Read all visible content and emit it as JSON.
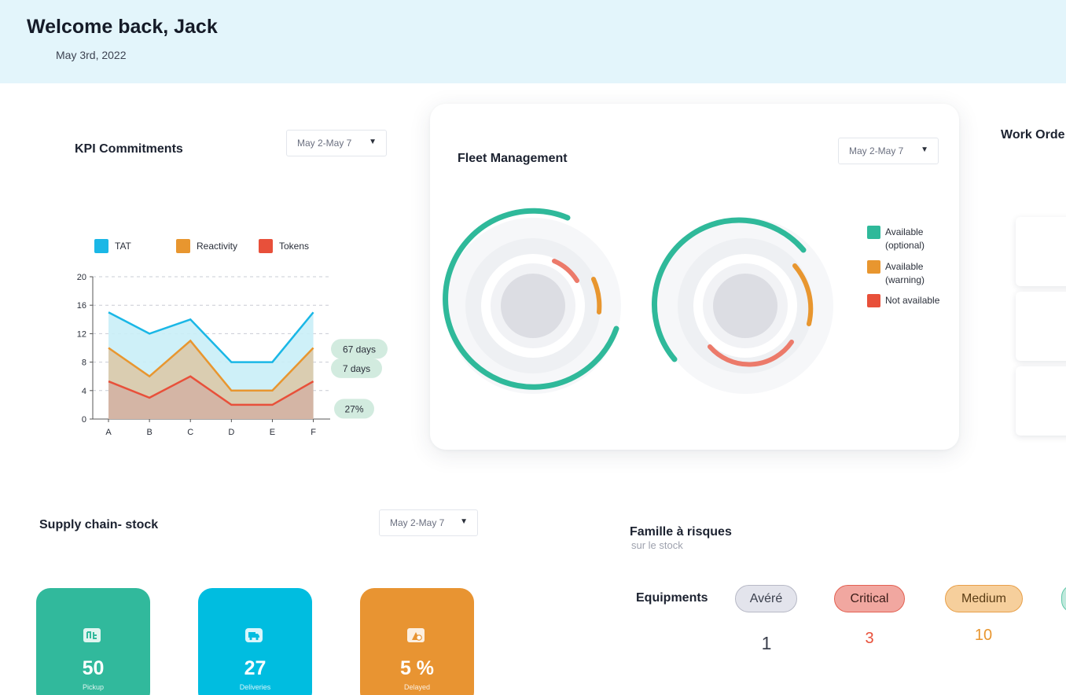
{
  "header": {
    "welcome": "Welcome back, Jack",
    "date": "May 3rd, 2022"
  },
  "kpi": {
    "title": "KPI Commitments",
    "range": "May 2-May 7",
    "legend": [
      {
        "label": "TAT",
        "color": "#1ab7e6"
      },
      {
        "label": "Reactivity",
        "color": "#e8962f"
      },
      {
        "label": "Tokens",
        "color": "#e8503a"
      }
    ],
    "badges": [
      "67 days",
      "7 days",
      "27%"
    ]
  },
  "chart_data": {
    "type": "area",
    "categories": [
      "A",
      "B",
      "C",
      "D",
      "E",
      "F"
    ],
    "series": [
      {
        "name": "TAT",
        "values": [
          15,
          12,
          14,
          8,
          8,
          15
        ]
      },
      {
        "name": "Reactivity",
        "values": [
          10,
          6,
          11,
          4,
          4,
          10
        ]
      },
      {
        "name": "Tokens",
        "values": [
          5.3,
          3,
          6,
          2,
          2,
          5.3
        ]
      }
    ],
    "yticks": [
      "0",
      "4",
      "8",
      "12",
      "16",
      "20"
    ],
    "ylim": [
      0,
      20
    ],
    "grid": true,
    "legend_position": "top"
  },
  "fleet": {
    "title": "Fleet Management",
    "range": "May 2-May 7",
    "legend": [
      {
        "label_line1": "Available",
        "label_line2": "(optional)",
        "color": "#2fb99a"
      },
      {
        "label_line1": "Available",
        "label_line2": "(warning)",
        "color": "#e8962f"
      },
      {
        "label_line1": "Not available",
        "label_line2": "",
        "color": "#e8503a"
      }
    ]
  },
  "work_orders": {
    "title": "Work Orde"
  },
  "supply": {
    "title": "Supply chain- stock",
    "range": "May 2-May 7",
    "cards": [
      {
        "value": "50",
        "label": "Pickup",
        "color": "#31b99c",
        "icon": "pickup-icon"
      },
      {
        "value": "27",
        "label": "Deliveries",
        "color": "#00bde0",
        "icon": "delivery-truck-icon"
      },
      {
        "value": "5 %",
        "label": "Delayed",
        "color": "#e89432",
        "icon": "delayed-icon"
      }
    ]
  },
  "risks": {
    "title": "Famille à risques",
    "subtitle": "sur le stock",
    "row_label": "Equipments",
    "items": [
      {
        "label": "Avéré",
        "count": "1",
        "bg": "#e3e4ec",
        "border": "#b7b9c6",
        "text": "#3a3f4c",
        "count_color": "#3a3f4c"
      },
      {
        "label": "Critical",
        "count": "3",
        "bg": "#f1a7a0",
        "border": "#e36152",
        "text": "#3a1c18",
        "count_color": "#e8503a"
      },
      {
        "label": "Medium",
        "count": "10",
        "bg": "#f6cf9c",
        "border": "#e8a04a",
        "text": "#5a3c14",
        "count_color": "#e8962f"
      }
    ]
  }
}
